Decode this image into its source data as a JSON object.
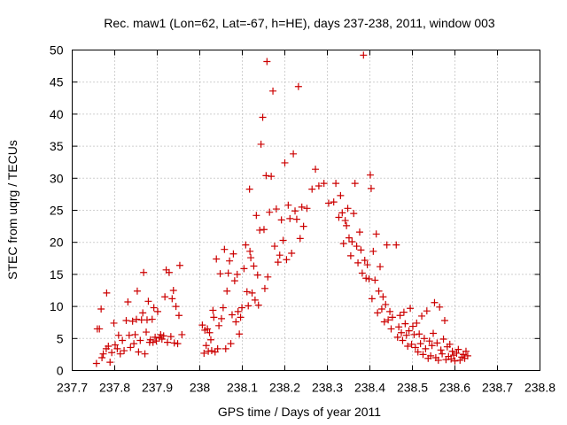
{
  "chart_data": {
    "type": "scatter",
    "title": "Rec. maw1 (Lon=62, Lat=-67, h=HE), days 237-238, 2011, window 003",
    "xlabel": "GPS time / Days of year 2011",
    "ylabel": "STEC from uqrg / TECUs",
    "xlim": [
      237.7,
      238.8
    ],
    "ylim": [
      0,
      50
    ],
    "x_ticks": [
      "237.7",
      "237.8",
      "237.9",
      "238",
      "238.1",
      "238.2",
      "238.3",
      "238.4",
      "238.5",
      "238.6",
      "238.7",
      "238.8"
    ],
    "y_ticks": [
      "0",
      "5",
      "10",
      "15",
      "20",
      "25",
      "30",
      "35",
      "40",
      "45",
      "50"
    ],
    "grid": true,
    "marker": "plus",
    "color": "#cc0000",
    "series": [
      {
        "points": [
          [
            237.757,
            1.1
          ],
          [
            237.759,
            6.5
          ],
          [
            237.764,
            6.5
          ],
          [
            237.768,
            9.6
          ],
          [
            237.77,
            2.0
          ],
          [
            237.773,
            2.6
          ],
          [
            237.78,
            3.4
          ],
          [
            237.781,
            12.1
          ],
          [
            237.785,
            3.8
          ],
          [
            237.789,
            1.3
          ],
          [
            237.793,
            2.8
          ],
          [
            237.798,
            7.4
          ],
          [
            237.801,
            4.0
          ],
          [
            237.806,
            3.4
          ],
          [
            237.809,
            5.5
          ],
          [
            237.813,
            2.6
          ],
          [
            237.818,
            4.7
          ],
          [
            237.822,
            3.1
          ],
          [
            237.827,
            7.8
          ],
          [
            237.831,
            10.7
          ],
          [
            237.834,
            5.5
          ],
          [
            237.837,
            3.6
          ],
          [
            237.842,
            7.7
          ],
          [
            237.845,
            4.2
          ],
          [
            237.848,
            5.6
          ],
          [
            237.851,
            8.0
          ],
          [
            237.853,
            12.4
          ],
          [
            237.856,
            2.9
          ],
          [
            237.86,
            4.7
          ],
          [
            237.863,
            7.9
          ],
          [
            237.866,
            9.0
          ],
          [
            237.868,
            15.3
          ],
          [
            237.871,
            2.6
          ],
          [
            237.874,
            6.0
          ],
          [
            237.876,
            7.9
          ],
          [
            237.879,
            10.8
          ],
          [
            237.882,
            4.4
          ],
          [
            237.884,
            4.8
          ],
          [
            237.888,
            8.0
          ],
          [
            237.89,
            4.4
          ],
          [
            237.892,
            9.8
          ],
          [
            237.895,
            5.2
          ],
          [
            237.898,
            4.6
          ],
          [
            237.901,
            9.2
          ],
          [
            237.905,
            5.1
          ],
          [
            237.908,
            5.6
          ],
          [
            237.911,
            4.9
          ],
          [
            237.915,
            5.4
          ],
          [
            237.918,
            11.5
          ],
          [
            237.921,
            15.7
          ],
          [
            237.924,
            4.4
          ],
          [
            237.928,
            15.3
          ],
          [
            237.932,
            5.3
          ],
          [
            237.935,
            11.2
          ],
          [
            237.938,
            12.5
          ],
          [
            237.94,
            4.3
          ],
          [
            237.944,
            10.0
          ],
          [
            237.948,
            4.2
          ],
          [
            237.951,
            8.6
          ],
          [
            237.953,
            16.4
          ],
          [
            237.958,
            5.6
          ]
        ]
      },
      {
        "points": [
          [
            238.006,
            7.1
          ],
          [
            238.01,
            2.7
          ],
          [
            238.012,
            6.3
          ],
          [
            238.015,
            3.9
          ],
          [
            238.018,
            6.5
          ],
          [
            238.02,
            3.0
          ],
          [
            238.023,
            5.9
          ],
          [
            238.026,
            4.8
          ],
          [
            238.028,
            3.1
          ],
          [
            238.031,
            9.4
          ],
          [
            238.033,
            8.3
          ],
          [
            238.036,
            2.9
          ],
          [
            238.039,
            17.4
          ],
          [
            238.042,
            3.4
          ],
          [
            238.045,
            7.0
          ],
          [
            238.048,
            15.1
          ],
          [
            238.051,
            8.1
          ],
          [
            238.055,
            9.8
          ],
          [
            238.058,
            18.9
          ],
          [
            238.061,
            3.4
          ],
          [
            238.064,
            12.4
          ],
          [
            238.067,
            15.2
          ],
          [
            238.07,
            17.1
          ],
          [
            238.073,
            4.2
          ],
          [
            238.076,
            8.7
          ],
          [
            238.079,
            18.2
          ],
          [
            238.082,
            14.0
          ],
          [
            238.085,
            7.6
          ],
          [
            238.088,
            15.0
          ],
          [
            238.09,
            9.2
          ],
          [
            238.093,
            5.7
          ],
          [
            238.096,
            8.3
          ],
          [
            238.099,
            9.8
          ],
          [
            238.104,
            15.9
          ],
          [
            238.108,
            19.6
          ],
          [
            238.111,
            12.3
          ],
          [
            238.114,
            10.1
          ],
          [
            238.117,
            28.3
          ],
          [
            238.118,
            18.6
          ],
          [
            238.12,
            17.6
          ],
          [
            238.123,
            12.1
          ],
          [
            238.127,
            16.3
          ],
          [
            238.13,
            11.0
          ],
          [
            238.133,
            24.2
          ],
          [
            238.136,
            14.9
          ],
          [
            238.138,
            10.2
          ],
          [
            238.141,
            21.9
          ],
          [
            238.144,
            35.3
          ],
          [
            238.148,
            39.5
          ],
          [
            238.151,
            22.0
          ],
          [
            238.153,
            12.8
          ],
          [
            238.156,
            30.4
          ],
          [
            238.158,
            48.2
          ],
          [
            238.16,
            14.6
          ],
          [
            238.164,
            24.7
          ],
          [
            238.168,
            30.3
          ],
          [
            238.172,
            43.6
          ],
          [
            238.176,
            19.4
          ],
          [
            238.18,
            25.2
          ],
          [
            238.184,
            16.9
          ],
          [
            238.188,
            18.0
          ],
          [
            238.192,
            23.5
          ],
          [
            238.196,
            20.3
          ],
          [
            238.2,
            32.4
          ],
          [
            238.204,
            17.3
          ],
          [
            238.208,
            25.8
          ],
          [
            238.212,
            23.7
          ],
          [
            238.216,
            18.3
          ],
          [
            238.22,
            33.8
          ],
          [
            238.224,
            24.9
          ],
          [
            238.228,
            23.6
          ],
          [
            238.232,
            44.3
          ],
          [
            238.236,
            20.6
          ],
          [
            238.24,
            25.5
          ],
          [
            238.244,
            22.5
          ],
          [
            238.252,
            25.3
          ]
        ]
      },
      {
        "points": [
          [
            238.264,
            28.3
          ],
          [
            238.272,
            31.4
          ],
          [
            238.28,
            28.8
          ],
          [
            238.292,
            29.2
          ],
          [
            238.303,
            26.1
          ],
          [
            238.315,
            26.3
          ],
          [
            238.32,
            29.2
          ],
          [
            238.327,
            23.9
          ],
          [
            238.331,
            27.3
          ],
          [
            238.335,
            24.6
          ],
          [
            238.338,
            19.8
          ],
          [
            238.342,
            23.4
          ],
          [
            238.345,
            22.6
          ],
          [
            238.348,
            25.3
          ],
          [
            238.351,
            20.7
          ],
          [
            238.355,
            17.9
          ],
          [
            238.358,
            20.1
          ],
          [
            238.362,
            24.5
          ],
          [
            238.365,
            29.2
          ],
          [
            238.369,
            19.4
          ],
          [
            238.372,
            16.8
          ],
          [
            238.376,
            21.6
          ],
          [
            238.379,
            18.8
          ],
          [
            238.382,
            15.2
          ],
          [
            238.385,
            49.2
          ],
          [
            238.388,
            17.2
          ],
          [
            238.391,
            14.4
          ],
          [
            238.394,
            16.5
          ],
          [
            238.398,
            14.3
          ],
          [
            238.401,
            30.5
          ],
          [
            238.403,
            28.4
          ],
          [
            238.405,
            11.2
          ],
          [
            238.408,
            18.6
          ],
          [
            238.412,
            14.1
          ],
          [
            238.415,
            21.3
          ],
          [
            238.418,
            9.0
          ],
          [
            238.421,
            12.4
          ],
          [
            238.424,
            16.2
          ],
          [
            238.428,
            9.6
          ],
          [
            238.431,
            11.5
          ],
          [
            238.434,
            7.6
          ],
          [
            238.437,
            10.3
          ],
          [
            238.44,
            19.6
          ],
          [
            238.443,
            7.9
          ],
          [
            238.447,
            9.2
          ],
          [
            238.45,
            6.5
          ],
          [
            238.453,
            8.3
          ]
        ]
      },
      {
        "points": [
          [
            238.462,
            19.6
          ],
          [
            238.465,
            5.2
          ],
          [
            238.468,
            6.8
          ],
          [
            238.471,
            8.6
          ],
          [
            238.474,
            5.9
          ],
          [
            238.477,
            4.7
          ],
          [
            238.48,
            9.1
          ],
          [
            238.483,
            7.3
          ],
          [
            238.486,
            5.5
          ],
          [
            238.489,
            3.8
          ],
          [
            238.492,
            6.2
          ],
          [
            238.495,
            9.7
          ],
          [
            238.498,
            4.1
          ],
          [
            238.501,
            6.9
          ],
          [
            238.504,
            5.6
          ],
          [
            238.507,
            3.6
          ],
          [
            238.51,
            7.4
          ],
          [
            238.513,
            2.9
          ],
          [
            238.516,
            5.7
          ],
          [
            238.519,
            4.2
          ],
          [
            238.522,
            8.5
          ],
          [
            238.525,
            2.5
          ],
          [
            238.528,
            5.0
          ],
          [
            238.531,
            3.4
          ],
          [
            238.534,
            9.3
          ],
          [
            238.537,
            1.9
          ],
          [
            238.54,
            4.6
          ],
          [
            238.543,
            2.3
          ],
          [
            238.546,
            3.9
          ],
          [
            238.549,
            5.8
          ],
          [
            238.552,
            10.6
          ],
          [
            238.555,
            2.0
          ],
          [
            238.558,
            4.3
          ],
          [
            238.561,
            1.6
          ],
          [
            238.564,
            9.9
          ],
          [
            238.567,
            3.2
          ],
          [
            238.57,
            2.6
          ],
          [
            238.573,
            4.9
          ],
          [
            238.576,
            7.8
          ],
          [
            238.579,
            1.7
          ],
          [
            238.582,
            3.7
          ],
          [
            238.585,
            2.2
          ],
          [
            238.588,
            4.1
          ],
          [
            238.591,
            1.8
          ],
          [
            238.594,
            3.0
          ],
          [
            238.597,
            2.4
          ],
          [
            238.6,
            1.5
          ],
          [
            238.604,
            2.7
          ],
          [
            238.608,
            3.3
          ],
          [
            238.612,
            1.6
          ],
          [
            238.616,
            2.1
          ],
          [
            238.62,
            2.5
          ],
          [
            238.623,
            1.9
          ],
          [
            238.626,
            3.0
          ],
          [
            238.63,
            2.3
          ]
        ]
      }
    ]
  }
}
